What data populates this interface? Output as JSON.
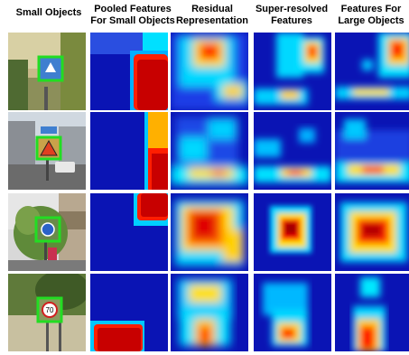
{
  "figure": {
    "columns": [
      {
        "label": "Small Objects"
      },
      {
        "label": "Pooled Features For Small Objects"
      },
      {
        "label": "Residual Representation"
      },
      {
        "label": "Super-resolved Features"
      },
      {
        "label": "Features For Large Objects"
      }
    ],
    "rows": [
      {
        "sign_icon": "blue-road-sign-icon"
      },
      {
        "sign_icon": "warning-triangle-sign-icon"
      },
      {
        "sign_icon": "blue-circular-sign-icon"
      },
      {
        "sign_icon": "speed-limit-sign-icon",
        "sign_text": "70"
      }
    ],
    "colors": {
      "heatmap_low": "#0a14b4",
      "heatmap_mid": "#00e0ff",
      "heatmap_high": "#ff1e00",
      "heatmap_peak": "#8b0000",
      "highlight_box": "#22dd22"
    }
  }
}
